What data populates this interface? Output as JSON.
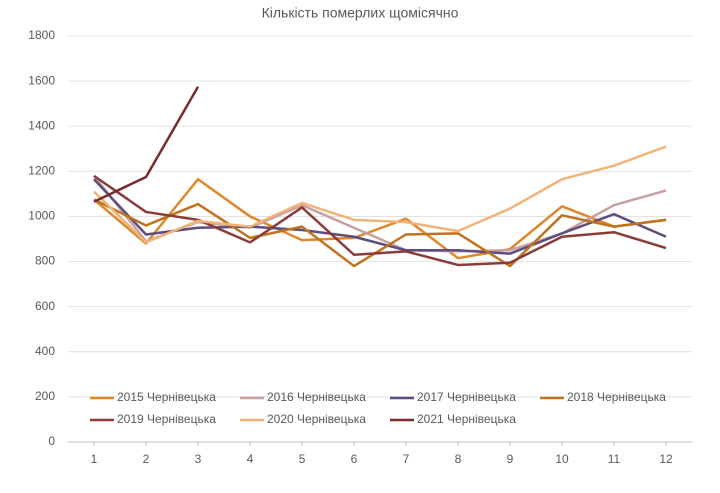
{
  "chart_data": {
    "type": "line",
    "title": "Кількість померлих щомісячно",
    "x": [
      1,
      2,
      3,
      4,
      5,
      6,
      7,
      8,
      9,
      10,
      11,
      12
    ],
    "xlim": [
      1,
      12
    ],
    "xticks": [
      1,
      2,
      3,
      4,
      5,
      6,
      7,
      8,
      9,
      10,
      11,
      12
    ],
    "ylim": [
      0,
      1800
    ],
    "yticks": [
      0,
      200,
      400,
      600,
      800,
      1000,
      1200,
      1400,
      1600,
      1800
    ],
    "grid": true,
    "series": [
      {
        "name": "2015 Чернівецька",
        "color": "#e0872a",
        "values": [
          1075,
          880,
          1165,
          1000,
          895,
          905,
          990,
          815,
          855,
          1045,
          955,
          985
        ]
      },
      {
        "name": "2016 Чернівецька",
        "color": "#c9a0a0",
        "values": [
          1180,
          890,
          975,
          950,
          1050,
          950,
          850,
          845,
          850,
          925,
          1050,
          1115
        ]
      },
      {
        "name": "2017 Чернівецька",
        "color": "#5e4d7e",
        "values": [
          1165,
          920,
          950,
          955,
          940,
          910,
          850,
          850,
          835,
          925,
          1010,
          910
        ]
      },
      {
        "name": "2018 Чернівецька",
        "color": "#c0731f",
        "values": [
          1075,
          960,
          1055,
          905,
          955,
          780,
          920,
          925,
          780,
          1005,
          955,
          985
        ]
      },
      {
        "name": "2019 Чернівецька",
        "color": "#8c3b3b",
        "values": [
          1180,
          1020,
          985,
          885,
          1040,
          830,
          845,
          785,
          795,
          910,
          930,
          860
        ]
      },
      {
        "name": "2020 Чернівецька",
        "color": "#f0b47a",
        "values": [
          1110,
          885,
          980,
          955,
          1060,
          985,
          975,
          935,
          1035,
          1165,
          1225,
          1310
        ]
      },
      {
        "name": "2021 Чернівецька",
        "color": "#7a2c2c",
        "values": [
          1065,
          1175,
          1575,
          null,
          null,
          null,
          null,
          null,
          null,
          null,
          null,
          null
        ]
      }
    ]
  }
}
